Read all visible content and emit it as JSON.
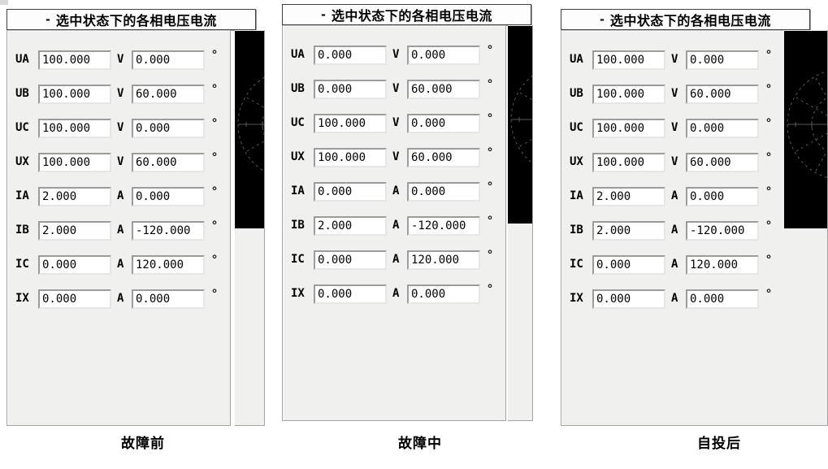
{
  "degree_symbol": "°",
  "colors": {
    "panel_bg": "#f0f0ef",
    "titlebar_bg": "#fdfdfd",
    "phasor_bg": "#000000",
    "phasor_grid": "#5a5a5a",
    "text": "#000000"
  },
  "panels": [
    {
      "id": "pre-fault",
      "collapse_marker": "-",
      "title": "选中状态下的各相电压电流",
      "caption": "故障前",
      "rows": [
        {
          "label": "UA",
          "value": "100.000",
          "unit": "V",
          "angle": "0.000"
        },
        {
          "label": "UB",
          "value": "100.000",
          "unit": "V",
          "angle": "60.000"
        },
        {
          "label": "UC",
          "value": "100.000",
          "unit": "V",
          "angle": "0.000"
        },
        {
          "label": "UX",
          "value": "100.000",
          "unit": "V",
          "angle": "60.000"
        },
        {
          "label": "IA",
          "value": "2.000",
          "unit": "A",
          "angle": "0.000"
        },
        {
          "label": "IB",
          "value": "2.000",
          "unit": "A",
          "angle": "-120.000"
        },
        {
          "label": "IC",
          "value": "0.000",
          "unit": "A",
          "angle": "120.000"
        },
        {
          "label": "IX",
          "value": "0.000",
          "unit": "A",
          "angle": "0.000"
        }
      ]
    },
    {
      "id": "during-fault",
      "collapse_marker": "-",
      "title": "选中状态下的各相电压电流",
      "caption": "故障中",
      "rows": [
        {
          "label": "UA",
          "value": "0.000",
          "unit": "V",
          "angle": "0.000"
        },
        {
          "label": "UB",
          "value": "0.000",
          "unit": "V",
          "angle": "60.000"
        },
        {
          "label": "UC",
          "value": "100.000",
          "unit": "V",
          "angle": "0.000"
        },
        {
          "label": "UX",
          "value": "100.000",
          "unit": "V",
          "angle": "60.000"
        },
        {
          "label": "IA",
          "value": "0.000",
          "unit": "A",
          "angle": "0.000"
        },
        {
          "label": "IB",
          "value": "2.000",
          "unit": "A",
          "angle": "-120.000"
        },
        {
          "label": "IC",
          "value": "0.000",
          "unit": "A",
          "angle": "120.000"
        },
        {
          "label": "IX",
          "value": "0.000",
          "unit": "A",
          "angle": "0.000"
        }
      ]
    },
    {
      "id": "after-auto-transfer",
      "collapse_marker": "-",
      "title": "选中状态下的各相电压电流",
      "caption": "自投后",
      "rows": [
        {
          "label": "UA",
          "value": "100.000",
          "unit": "V",
          "angle": "0.000"
        },
        {
          "label": "UB",
          "value": "100.000",
          "unit": "V",
          "angle": "60.000"
        },
        {
          "label": "UC",
          "value": "100.000",
          "unit": "V",
          "angle": "0.000"
        },
        {
          "label": "UX",
          "value": "100.000",
          "unit": "V",
          "angle": "60.000"
        },
        {
          "label": "IA",
          "value": "2.000",
          "unit": "A",
          "angle": "0.000"
        },
        {
          "label": "IB",
          "value": "2.000",
          "unit": "A",
          "angle": "-120.000"
        },
        {
          "label": "IC",
          "value": "0.000",
          "unit": "A",
          "angle": "120.000"
        },
        {
          "label": "IX",
          "value": "0.000",
          "unit": "A",
          "angle": "0.000"
        }
      ]
    }
  ]
}
